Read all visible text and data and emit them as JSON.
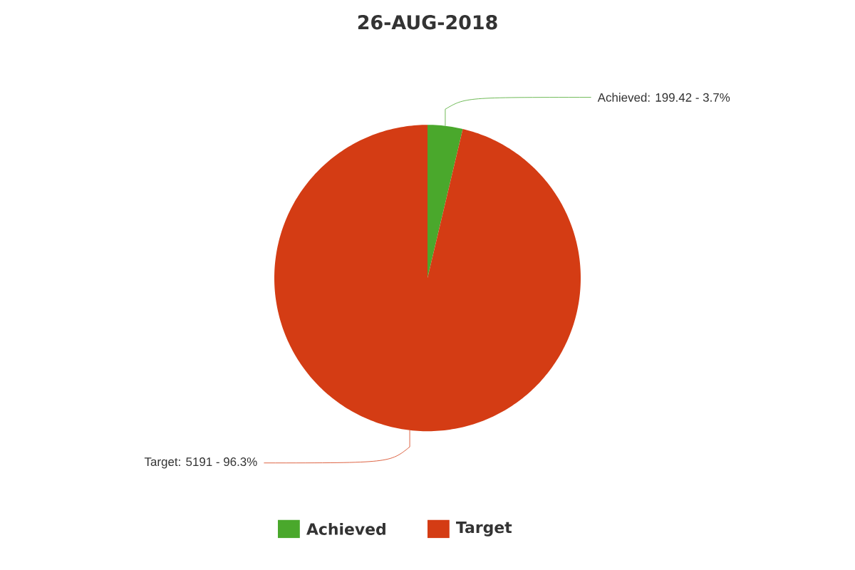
{
  "chart_data": {
    "type": "pie",
    "title": "26-AUG-2018",
    "categories": [
      "Achieved",
      "Target"
    ],
    "values": [
      199.42,
      5191
    ],
    "colors": [
      "#4aa82c",
      "#d43c14"
    ],
    "value_labels": [
      "Achieved: 199.42 - 3.7%",
      "Target: 5191 - 96.3%"
    ],
    "legend": "bottom"
  }
}
